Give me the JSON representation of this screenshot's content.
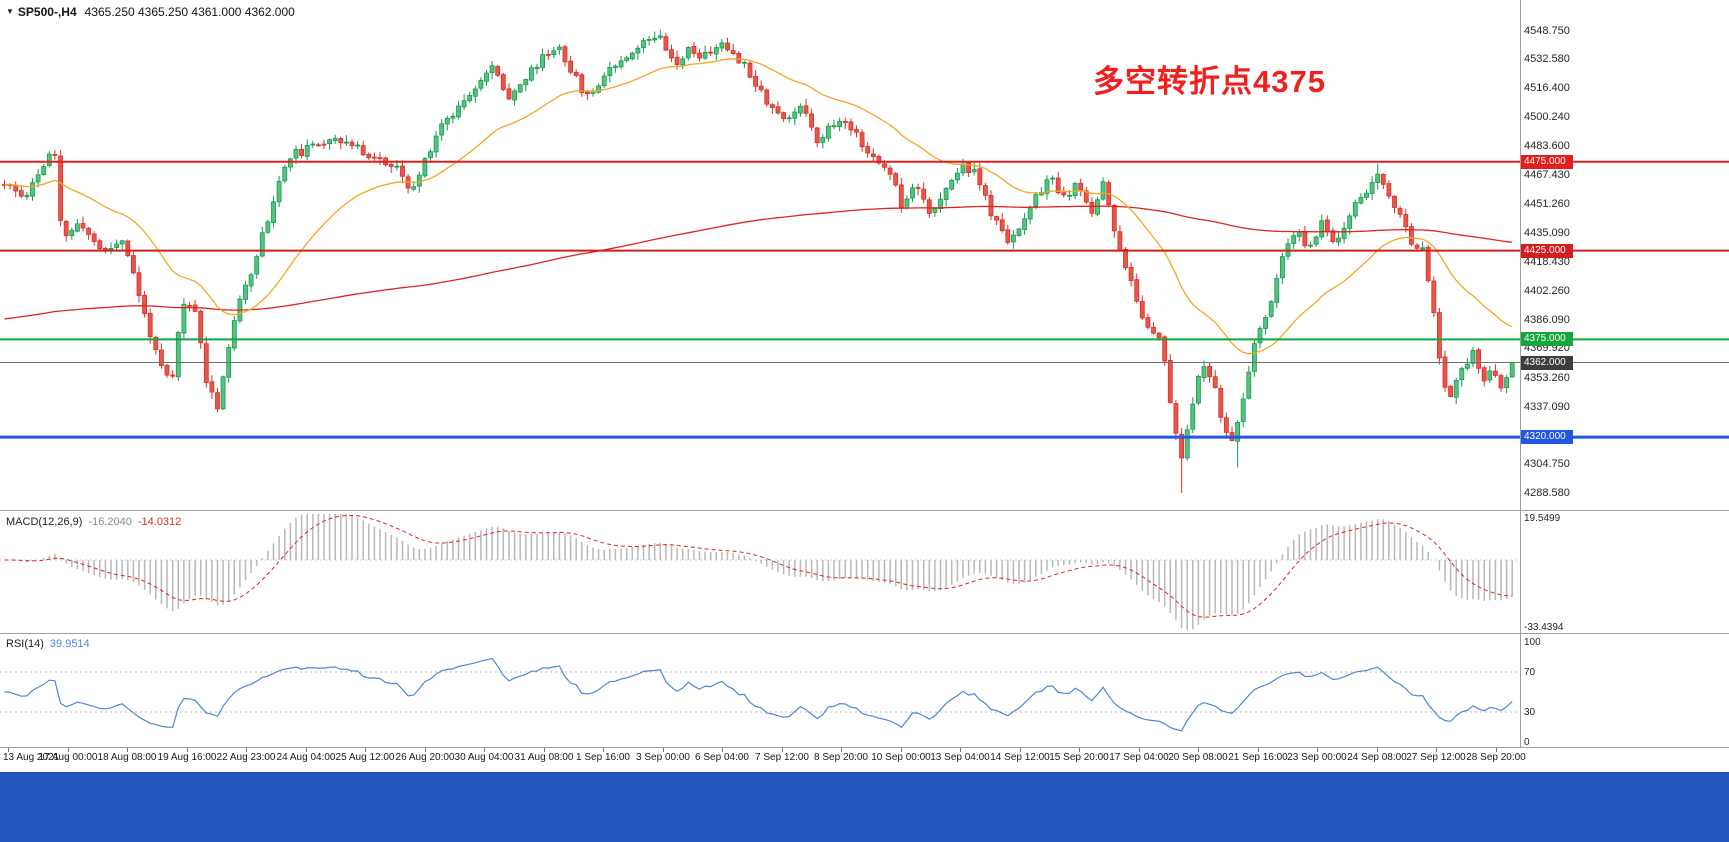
{
  "header": {
    "dropdown_icon": "▼",
    "symbol_timeframe": "SP500-,H4",
    "ohlc": "4365.250 4365.250 4361.000 4362.000"
  },
  "annotation": {
    "text": "多空转折点4375",
    "color": "#f21f1f"
  },
  "panels": {
    "macd": {
      "name": "MACD(12,26,9)",
      "main_value": "-16.2040",
      "signal_value": "-14.0312",
      "scale_top": "19.5499",
      "scale_bottom": "-33.4394"
    },
    "rsi": {
      "name": "RSI(14)",
      "value": "39.9514",
      "scale_labels": [
        "100",
        "70",
        "30",
        "0"
      ]
    }
  },
  "ui": {
    "background": "#ffffff",
    "separator_color": "#9e9e9e",
    "taskbar_color": "#2456c0"
  },
  "chart_data": {
    "type": "candlestick",
    "symbol": "SP500-",
    "timeframe": "H4",
    "last_bar_ohlc": {
      "open": 4365.25,
      "high": 4365.25,
      "low": 4361.0,
      "close": 4362.0
    },
    "visible_price_range": [
      4279,
      4566
    ],
    "y_tick_labels": [
      "4548.750",
      "4532.580",
      "4516.400",
      "4500.240",
      "4483.600",
      "4467.430",
      "4451.260",
      "4435.090",
      "4418.430",
      "4402.260",
      "4386.090",
      "4369.920",
      "4353.260",
      "4337.090",
      "4304.750",
      "4288.580"
    ],
    "x_labels": [
      "13 Aug 2021",
      "17 Aug 00:00",
      "18 Aug 08:00",
      "19 Aug 16:00",
      "22 Aug 23:00",
      "24 Aug 04:00",
      "25 Aug 12:00",
      "26 Aug 20:00",
      "30 Aug 04:00",
      "31 Aug 08:00",
      "1 Sep 16:00",
      "3 Sep 00:00",
      "6 Sep 04:00",
      "7 Sep 12:00",
      "8 Sep 20:00",
      "10 Sep 00:00",
      "13 Sep 04:00",
      "14 Sep 12:00",
      "15 Sep 20:00",
      "17 Sep 04:00",
      "20 Sep 08:00",
      "21 Sep 16:00",
      "23 Sep 00:00",
      "24 Sep 08:00",
      "27 Sep 12:00",
      "28 Sep 20:00"
    ],
    "levels": [
      {
        "value": 4475.0,
        "label": "4475.000",
        "color": "#e21e1e",
        "width": 2
      },
      {
        "value": 4425.0,
        "label": "4425.000",
        "color": "#cf1f1f",
        "width": 2
      },
      {
        "value": 4375.0,
        "label": "4375.000",
        "color": "#12a63c",
        "width": 2
      },
      {
        "value": 4320.0,
        "label": "4320.000",
        "color": "#2457e0",
        "width": 3
      },
      {
        "value": 4362.0,
        "label": "4362.000",
        "color": "#6f6f6f",
        "width": 1,
        "tag_bg": "#3d3d3d",
        "role": "bid"
      }
    ],
    "bars": 270,
    "seed": 11,
    "last_close": 4362.0,
    "price_path": [
      [
        0.0,
        4462
      ],
      [
        0.013,
        4455
      ],
      [
        0.028,
        4476
      ],
      [
        0.033,
        4482
      ],
      [
        0.038,
        4432
      ],
      [
        0.05,
        4440
      ],
      [
        0.066,
        4424
      ],
      [
        0.079,
        4432
      ],
      [
        0.089,
        4400
      ],
      [
        0.104,
        4358
      ],
      [
        0.111,
        4350
      ],
      [
        0.118,
        4396
      ],
      [
        0.127,
        4390
      ],
      [
        0.134,
        4352
      ],
      [
        0.141,
        4337
      ],
      [
        0.152,
        4385
      ],
      [
        0.166,
        4420
      ],
      [
        0.178,
        4452
      ],
      [
        0.188,
        4478
      ],
      [
        0.205,
        4483
      ],
      [
        0.218,
        4490
      ],
      [
        0.232,
        4483
      ],
      [
        0.245,
        4478
      ],
      [
        0.261,
        4470
      ],
      [
        0.27,
        4457
      ],
      [
        0.278,
        4474
      ],
      [
        0.288,
        4494
      ],
      [
        0.3,
        4505
      ],
      [
        0.311,
        4517
      ],
      [
        0.324,
        4528
      ],
      [
        0.334,
        4512
      ],
      [
        0.344,
        4520
      ],
      [
        0.357,
        4534
      ],
      [
        0.368,
        4540
      ],
      [
        0.377,
        4524
      ],
      [
        0.387,
        4511
      ],
      [
        0.4,
        4527
      ],
      [
        0.414,
        4536
      ],
      [
        0.427,
        4544
      ],
      [
        0.435,
        4548
      ],
      [
        0.444,
        4529
      ],
      [
        0.453,
        4538
      ],
      [
        0.464,
        4534
      ],
      [
        0.473,
        4541
      ],
      [
        0.483,
        4537
      ],
      [
        0.493,
        4527
      ],
      [
        0.506,
        4509
      ],
      [
        0.519,
        4497
      ],
      [
        0.529,
        4509
      ],
      [
        0.539,
        4487
      ],
      [
        0.552,
        4498
      ],
      [
        0.563,
        4494
      ],
      [
        0.575,
        4477
      ],
      [
        0.588,
        4469
      ],
      [
        0.595,
        4451
      ],
      [
        0.605,
        4464
      ],
      [
        0.615,
        4444
      ],
      [
        0.625,
        4459
      ],
      [
        0.635,
        4474
      ],
      [
        0.645,
        4467
      ],
      [
        0.655,
        4444
      ],
      [
        0.665,
        4431
      ],
      [
        0.675,
        4440
      ],
      [
        0.684,
        4454
      ],
      [
        0.693,
        4467
      ],
      [
        0.701,
        4454
      ],
      [
        0.711,
        4461
      ],
      [
        0.721,
        4447
      ],
      [
        0.729,
        4464
      ],
      [
        0.735,
        4439
      ],
      [
        0.744,
        4416
      ],
      [
        0.753,
        4389
      ],
      [
        0.762,
        4381
      ],
      [
        0.769,
        4368
      ],
      [
        0.775,
        4328
      ],
      [
        0.78,
        4307
      ],
      [
        0.788,
        4338
      ],
      [
        0.794,
        4361
      ],
      [
        0.802,
        4349
      ],
      [
        0.808,
        4329
      ],
      [
        0.815,
        4314
      ],
      [
        0.822,
        4344
      ],
      [
        0.83,
        4374
      ],
      [
        0.839,
        4394
      ],
      [
        0.847,
        4419
      ],
      [
        0.857,
        4437
      ],
      [
        0.865,
        4424
      ],
      [
        0.873,
        4441
      ],
      [
        0.883,
        4429
      ],
      [
        0.893,
        4447
      ],
      [
        0.903,
        4459
      ],
      [
        0.912,
        4467
      ],
      [
        0.919,
        4454
      ],
      [
        0.927,
        4441
      ],
      [
        0.934,
        4429
      ],
      [
        0.941,
        4427
      ],
      [
        0.947,
        4394
      ],
      [
        0.954,
        4351
      ],
      [
        0.96,
        4344
      ],
      [
        0.967,
        4359
      ],
      [
        0.974,
        4367
      ],
      [
        0.98,
        4351
      ],
      [
        0.987,
        4357
      ],
      [
        0.992,
        4347
      ],
      [
        1.0,
        4362
      ]
    ],
    "wick_overrides": [
      {
        "frac": 0.435,
        "high": 4549.3
      },
      {
        "frac": 0.78,
        "low": 4288.6
      },
      {
        "frac": 0.816,
        "low": 4303.0
      },
      {
        "frac": 0.912,
        "high": 4474.0
      }
    ],
    "candle_colors": {
      "up_stroke": "#169a4e",
      "up_fill": "#53c480",
      "down_stroke": "#d92f26",
      "down_fill": "#e8564b"
    },
    "ma_fast": {
      "period": 28,
      "color": "#f5a623"
    },
    "ma_slow": {
      "period": 330,
      "color": "#e02424",
      "seed": 4386
    },
    "indicators": {
      "macd": {
        "fast": 12,
        "slow": 26,
        "signal": 9,
        "histogram_color": "#b8b8b8",
        "signal_color": "#e02424",
        "scale": [
          -33.4394,
          19.5499
        ],
        "current_main": -16.204,
        "current_signal": -14.0312
      },
      "rsi": {
        "period": 14,
        "color": "#4f86d8",
        "levels": [
          30,
          70
        ],
        "current": 39.9514,
        "scale": [
          0,
          100
        ]
      }
    }
  }
}
